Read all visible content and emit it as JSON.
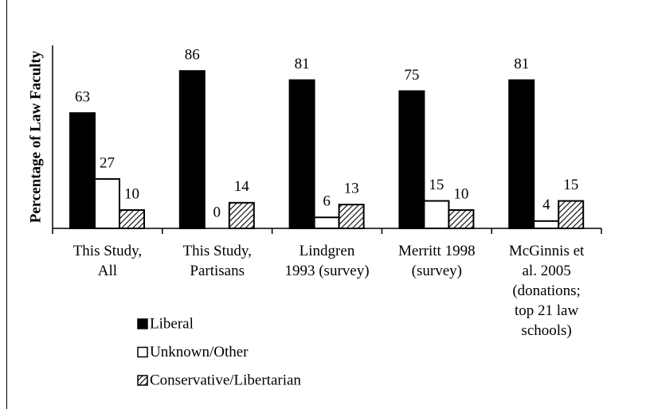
{
  "chart_data": {
    "type": "bar",
    "y_label": "Percentage of Law Faculty",
    "categories": [
      "This Study,\nAll",
      "This Study,\nPartisans",
      "Lindgren\n1993 (survey)",
      "Merritt 1998\n(survey)",
      "McGinnis et\nal. 2005\n(donations;\ntop 21 law\nschools)"
    ],
    "series": [
      {
        "name": "Liberal",
        "color": "#000000",
        "values": [
          63,
          86,
          81,
          75,
          81
        ]
      },
      {
        "name": "Unknown/Other",
        "color": "#ffffff",
        "values": [
          27,
          0,
          6,
          15,
          4
        ]
      },
      {
        "name": "Conservative/Libertarian",
        "color": "#000000",
        "pattern": "hatch",
        "values": [
          10,
          14,
          13,
          10,
          15
        ]
      }
    ],
    "ylim": [
      0,
      100
    ]
  }
}
